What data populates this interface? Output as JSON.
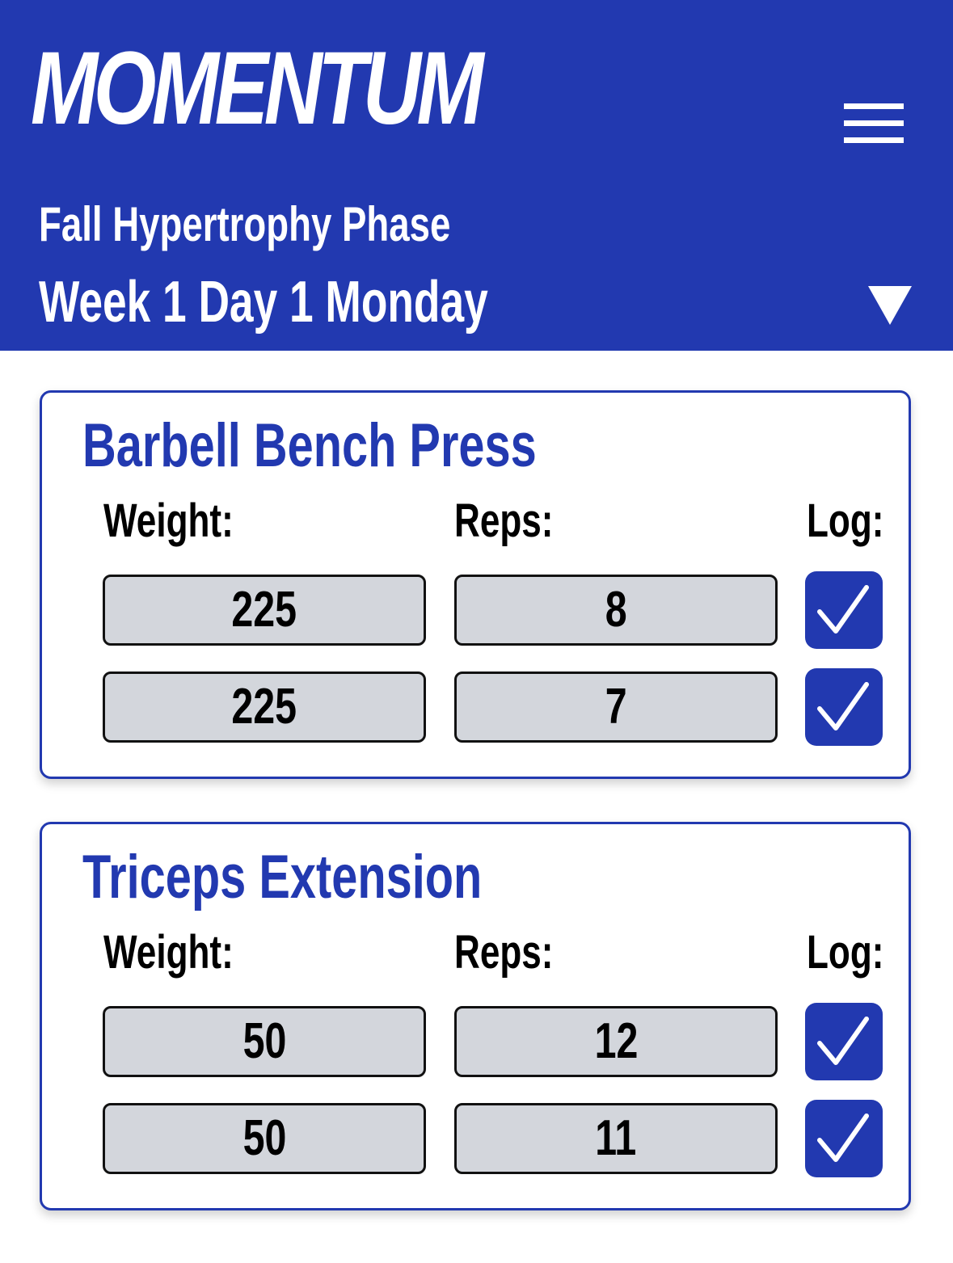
{
  "header": {
    "app_name": "MOMENTUM",
    "program_name": "Fall Hypertrophy Phase",
    "day_selector": "Week 1 Day 1 Monday"
  },
  "colors": {
    "brand": "#2239b0",
    "field_bg": "#d3d6dc",
    "text": "#000000"
  },
  "icons": {
    "menu": "hamburger-menu-icon",
    "dropdown": "triangle-down-icon",
    "log": "checkmark-icon"
  },
  "exercises": [
    {
      "name": "Barbell Bench Press",
      "weight_label": "Weight:",
      "reps_label": "Reps:",
      "log_label": "Log:",
      "sets": [
        {
          "weight": "225",
          "reps": "8",
          "logged": true
        },
        {
          "weight": "225",
          "reps": "7",
          "logged": true
        }
      ]
    },
    {
      "name": "Triceps Extension",
      "weight_label": "Weight:",
      "reps_label": "Reps:",
      "log_label": "Log:",
      "sets": [
        {
          "weight": "50",
          "reps": "12",
          "logged": true
        },
        {
          "weight": "50",
          "reps": "11",
          "logged": true
        }
      ]
    }
  ]
}
